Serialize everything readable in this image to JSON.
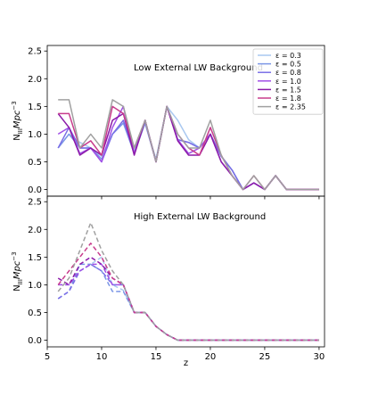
{
  "chart_data": [
    {
      "type": "line",
      "panel": "top",
      "annotation": "Low External LW Background",
      "ylabel": "N_III Mpc^-3",
      "ylabel_parts": {
        "base": "N",
        "sub": "III",
        "mid": "Mpc",
        "sup": "−3"
      },
      "xlim": [
        5,
        30.5
      ],
      "ylim": [
        -0.12,
        2.6
      ],
      "yticks": [
        0.0,
        0.5,
        1.0,
        1.5,
        2.0,
        2.5
      ],
      "ytick_labels": [
        "0.0",
        "0.5",
        "1.0",
        "1.5",
        "2.0",
        "2.5"
      ],
      "line_style": "solid",
      "x": [
        6,
        7,
        8,
        9,
        10,
        11,
        12,
        13,
        14,
        15,
        16,
        17,
        18,
        19,
        20,
        21,
        22,
        23,
        24,
        25,
        26,
        27,
        28,
        29,
        30
      ],
      "series": [
        {
          "name": "ε = 0.3",
          "color": "#a9c8f0",
          "values": [
            0.75,
            1.0,
            0.85,
            0.75,
            0.6,
            1.0,
            1.2,
            0.7,
            1.2,
            0.55,
            1.5,
            1.25,
            0.9,
            0.75,
            1.0,
            0.6,
            0.35,
            0.0,
            0.12,
            0.0,
            0.25,
            0.0,
            0.0,
            0.0,
            0.0
          ]
        },
        {
          "name": "ε = 0.5",
          "color": "#7b96e6",
          "values": [
            0.75,
            1.0,
            0.75,
            0.75,
            0.55,
            1.0,
            1.2,
            0.65,
            1.2,
            0.5,
            1.5,
            0.9,
            0.85,
            0.75,
            1.0,
            0.6,
            0.35,
            0.0,
            0.12,
            0.0,
            0.25,
            0.0,
            0.0,
            0.0,
            0.0
          ]
        },
        {
          "name": "ε = 0.8",
          "color": "#7a6ee6",
          "values": [
            0.75,
            1.12,
            0.75,
            0.75,
            0.5,
            1.0,
            1.25,
            0.65,
            1.25,
            0.5,
            1.5,
            0.9,
            0.85,
            0.75,
            1.0,
            0.6,
            0.35,
            0.0,
            0.12,
            0.0,
            0.25,
            0.0,
            0.0,
            0.0,
            0.0
          ]
        },
        {
          "name": "ε = 1.0",
          "color": "#a150e6",
          "values": [
            1.0,
            1.12,
            0.65,
            0.75,
            0.5,
            1.12,
            1.5,
            0.65,
            1.25,
            0.5,
            1.5,
            0.9,
            0.65,
            0.75,
            1.0,
            0.5,
            0.25,
            0.0,
            0.12,
            0.0,
            0.25,
            0.0,
            0.0,
            0.0,
            0.0
          ]
        },
        {
          "name": "ε = 1.5",
          "color": "#8c1aa8",
          "values": [
            1.37,
            1.12,
            0.62,
            0.75,
            0.62,
            1.25,
            1.37,
            0.62,
            1.25,
            0.5,
            1.5,
            0.88,
            0.62,
            0.62,
            1.0,
            0.5,
            0.25,
            0.0,
            0.12,
            0.0,
            0.25,
            0.0,
            0.0,
            0.0,
            0.0
          ]
        },
        {
          "name": "ε = 1.8",
          "color": "#c83c8c",
          "values": [
            1.37,
            1.37,
            0.75,
            0.88,
            0.62,
            1.5,
            1.37,
            0.75,
            1.25,
            0.5,
            1.5,
            1.0,
            0.75,
            0.62,
            1.12,
            0.62,
            0.25,
            0.0,
            0.25,
            0.0,
            0.25,
            0.0,
            0.0,
            0.0,
            0.0
          ]
        },
        {
          "name": "ε = 2.35",
          "color": "#a0a0a0",
          "values": [
            1.62,
            1.62,
            0.75,
            1.0,
            0.75,
            1.62,
            1.5,
            0.75,
            1.25,
            0.5,
            1.5,
            1.0,
            0.75,
            0.75,
            1.25,
            0.62,
            0.25,
            0.0,
            0.25,
            0.0,
            0.25,
            0.0,
            0.0,
            0.0,
            0.0
          ]
        }
      ],
      "legend": {
        "placement": "top-right"
      }
    },
    {
      "type": "line",
      "panel": "bottom",
      "annotation": "High External LW Background",
      "ylabel": "N_III Mpc^-3",
      "ylabel_parts": {
        "base": "N",
        "sub": "III",
        "mid": "Mpc",
        "sup": "−3"
      },
      "xlabel": "z",
      "xlim": [
        5,
        30.5
      ],
      "ylim": [
        -0.12,
        2.6
      ],
      "xticks": [
        5,
        10,
        15,
        20,
        25,
        30
      ],
      "xtick_labels": [
        "5",
        "10",
        "15",
        "20",
        "25",
        "30"
      ],
      "yticks": [
        0.0,
        0.5,
        1.0,
        1.5,
        2.0,
        2.5
      ],
      "ytick_labels": [
        "0.0",
        "0.5",
        "1.0",
        "1.5",
        "2.0",
        "2.5"
      ],
      "line_style": "dashed",
      "x": [
        6,
        7,
        8,
        9,
        10,
        11,
        12,
        13,
        14,
        15,
        16,
        17,
        18,
        19,
        20,
        21,
        22,
        23,
        24,
        25,
        26,
        27,
        28,
        29,
        30
      ],
      "series": [
        {
          "name": "ε = 0.3",
          "color": "#a9c8f0",
          "values": [
            1.0,
            1.0,
            1.25,
            1.37,
            1.5,
            1.0,
            0.9,
            0.5,
            0.5,
            0.25,
            0.1,
            0.0,
            0.0,
            0.0,
            0.0,
            0.0,
            0.0,
            0.0,
            0.0,
            0.0,
            0.0,
            0.0,
            0.0,
            0.0,
            0.0
          ]
        },
        {
          "name": "ε = 0.5",
          "color": "#7b96e6",
          "values": [
            0.75,
            0.88,
            1.37,
            1.37,
            1.25,
            0.88,
            0.88,
            0.5,
            0.5,
            0.25,
            0.1,
            0.0,
            0.0,
            0.0,
            0.0,
            0.0,
            0.0,
            0.0,
            0.0,
            0.0,
            0.0,
            0.0,
            0.0,
            0.0,
            0.0
          ]
        },
        {
          "name": "ε = 0.8",
          "color": "#7a6ee6",
          "values": [
            0.75,
            0.88,
            1.25,
            1.37,
            1.25,
            1.0,
            1.0,
            0.5,
            0.5,
            0.25,
            0.1,
            0.0,
            0.0,
            0.0,
            0.0,
            0.0,
            0.0,
            0.0,
            0.0,
            0.0,
            0.0,
            0.0,
            0.0,
            0.0,
            0.0
          ]
        },
        {
          "name": "ε = 1.0",
          "color": "#a150e6",
          "values": [
            1.0,
            1.0,
            1.25,
            1.37,
            1.37,
            1.0,
            1.0,
            0.5,
            0.5,
            0.25,
            0.1,
            0.0,
            0.0,
            0.0,
            0.0,
            0.0,
            0.0,
            0.0,
            0.0,
            0.0,
            0.0,
            0.0,
            0.0,
            0.0,
            0.0
          ]
        },
        {
          "name": "ε = 1.5",
          "color": "#8c1aa8",
          "values": [
            1.12,
            1.0,
            1.37,
            1.5,
            1.37,
            1.12,
            1.0,
            0.5,
            0.5,
            0.25,
            0.1,
            0.0,
            0.0,
            0.0,
            0.0,
            0.0,
            0.0,
            0.0,
            0.0,
            0.0,
            0.0,
            0.0,
            0.0,
            0.0,
            0.0
          ]
        },
        {
          "name": "ε = 1.8",
          "color": "#c83c8c",
          "values": [
            1.0,
            1.25,
            1.5,
            1.75,
            1.5,
            1.12,
            1.0,
            0.5,
            0.5,
            0.25,
            0.1,
            0.0,
            0.0,
            0.0,
            0.0,
            0.0,
            0.0,
            0.0,
            0.0,
            0.0,
            0.0,
            0.0,
            0.0,
            0.0,
            0.0
          ]
        },
        {
          "name": "ε = 2.35",
          "color": "#a0a0a0",
          "values": [
            0.88,
            1.12,
            1.62,
            2.12,
            1.62,
            1.25,
            1.0,
            0.5,
            0.5,
            0.25,
            0.1,
            0.0,
            0.0,
            0.0,
            0.0,
            0.0,
            0.0,
            0.0,
            0.0,
            0.0,
            0.0,
            0.0,
            0.0,
            0.0,
            0.0
          ]
        }
      ]
    }
  ]
}
